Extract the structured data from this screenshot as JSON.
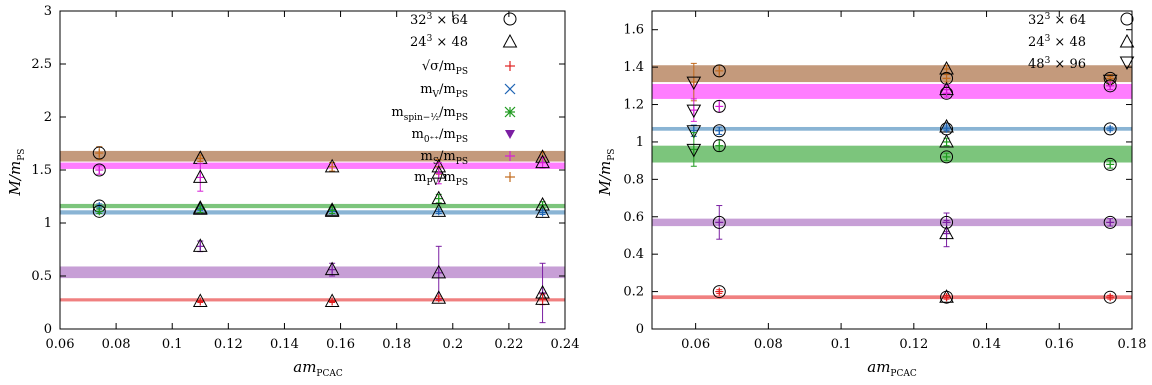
{
  "chart_data": [
    {
      "type": "scatter",
      "xlabel": "am_PCAC",
      "ylabel": "M/m_PS",
      "xlim": [
        0.06,
        0.24
      ],
      "ylim": [
        0,
        3
      ],
      "xticks": [
        "0.06",
        "0.08",
        "0.1",
        "0.12",
        "0.14",
        "0.16",
        "0.18",
        "0.2",
        "0.22",
        "0.24"
      ],
      "yticks": [
        "0",
        "0.5",
        "1",
        "1.5",
        "2",
        "2.5",
        "3"
      ],
      "legend": [
        "32^3 × 64",
        "24^3 × 48",
        "√σ/m_PS",
        "m_V/m_PS",
        "m_spin-1/2/m_PS",
        "m_0++/m_PS",
        "m_S/m_PS",
        "m_PV/m_PS"
      ],
      "bands": [
        {
          "name": "m_PV/m_PS",
          "color": "#c49a7c",
          "ymin": 1.58,
          "ymax": 1.68
        },
        {
          "name": "m_S/m_PS",
          "color": "#ff7dff",
          "ymin": 1.51,
          "ymax": 1.57
        },
        {
          "name": "m_spin-1/2/m_PS",
          "color": "#7cc57c",
          "ymin": 1.14,
          "ymax": 1.18
        },
        {
          "name": "m_V/m_PS",
          "color": "#8ab4d4",
          "ymin": 1.08,
          "ymax": 1.12
        },
        {
          "name": "m_0++/m_PS",
          "color": "#c79fd6",
          "ymin": 0.48,
          "ymax": 0.59
        },
        {
          "name": "√σ/m_PS",
          "color": "#f08080",
          "ymin": 0.26,
          "ymax": 0.29
        }
      ],
      "points": [
        {
          "x": 0.074,
          "y": 1.66,
          "err": 0.06,
          "color": "#c26a1d",
          "marker": "circle"
        },
        {
          "x": 0.074,
          "y": 1.5,
          "err": 0.04,
          "color": "#d61ed6",
          "marker": "circle"
        },
        {
          "x": 0.074,
          "y": 1.16,
          "err": 0.02,
          "color": "#1e64b4",
          "marker": "circle"
        },
        {
          "x": 0.074,
          "y": 1.11,
          "err": 0.02,
          "color": "#1e9a1e",
          "marker": "circle"
        },
        {
          "x": 0.11,
          "y": 1.61,
          "err": 0.03,
          "color": "#c26a1d",
          "marker": "up"
        },
        {
          "x": 0.11,
          "y": 1.43,
          "err": 0.13,
          "color": "#d61ed6",
          "marker": "up"
        },
        {
          "x": 0.11,
          "y": 1.14,
          "err": 0.02,
          "color": "#1e64b4",
          "marker": "up"
        },
        {
          "x": 0.11,
          "y": 1.13,
          "err": 0.03,
          "color": "#1e9a1e",
          "marker": "up"
        },
        {
          "x": 0.11,
          "y": 0.78,
          "err": 0.05,
          "color": "#7b1fa2",
          "marker": "up"
        },
        {
          "x": 0.11,
          "y": 0.26,
          "err": 0.01,
          "color": "#e02020",
          "marker": "up"
        },
        {
          "x": 0.157,
          "y": 1.53,
          "err": 0.04,
          "color": "#c26a1d",
          "marker": "up"
        },
        {
          "x": 0.157,
          "y": 1.11,
          "err": 0.02,
          "color": "#1e64b4",
          "marker": "up"
        },
        {
          "x": 0.157,
          "y": 1.12,
          "err": 0.03,
          "color": "#1e9a1e",
          "marker": "up"
        },
        {
          "x": 0.157,
          "y": 0.56,
          "err": 0.06,
          "color": "#7b1fa2",
          "marker": "up"
        },
        {
          "x": 0.157,
          "y": 0.26,
          "err": 0.01,
          "color": "#e02020",
          "marker": "up"
        },
        {
          "x": 0.195,
          "y": 1.53,
          "err": 0.07,
          "color": "#c26a1d",
          "marker": "up"
        },
        {
          "x": 0.195,
          "y": 1.47,
          "err": 0.1,
          "color": "#d61ed6",
          "marker": "up"
        },
        {
          "x": 0.195,
          "y": 1.23,
          "err": 0.04,
          "color": "#1e9a1e",
          "marker": "up"
        },
        {
          "x": 0.195,
          "y": 1.11,
          "err": 0.02,
          "color": "#1e64b4",
          "marker": "up"
        },
        {
          "x": 0.195,
          "y": 0.53,
          "err": 0.25,
          "color": "#7b1fa2",
          "marker": "up"
        },
        {
          "x": 0.195,
          "y": 0.29,
          "err": 0.02,
          "color": "#e02020",
          "marker": "up"
        },
        {
          "x": 0.232,
          "y": 1.62,
          "err": 0.05,
          "color": "#c26a1d",
          "marker": "up"
        },
        {
          "x": 0.232,
          "y": 1.57,
          "err": 0.05,
          "color": "#d61ed6",
          "marker": "up"
        },
        {
          "x": 0.232,
          "y": 1.17,
          "err": 0.03,
          "color": "#1e9a1e",
          "marker": "up"
        },
        {
          "x": 0.232,
          "y": 1.1,
          "err": 0.02,
          "color": "#1e64b4",
          "marker": "up"
        },
        {
          "x": 0.232,
          "y": 0.34,
          "err": 0.28,
          "color": "#7b1fa2",
          "marker": "up"
        },
        {
          "x": 0.232,
          "y": 0.28,
          "err": 0.05,
          "color": "#e02020",
          "marker": "up"
        }
      ]
    },
    {
      "type": "scatter",
      "xlabel": "am_PCAC",
      "ylabel": "M/m_PS",
      "xlim": [
        0.048,
        0.18
      ],
      "ylim": [
        0,
        1.7
      ],
      "xticks": [
        "0.06",
        "0.08",
        "0.1",
        "0.12",
        "0.14",
        "0.16",
        "0.18"
      ],
      "yticks": [
        "0",
        "0.2",
        "0.4",
        "0.6",
        "0.8",
        "1",
        "1.2",
        "1.4",
        "1.6"
      ],
      "legend": [
        "32^3 × 64",
        "24^3 × 48",
        "48^3 × 96"
      ],
      "bands": [
        {
          "name": "m_PV/m_PS",
          "color": "#c49a7c",
          "ymin": 1.32,
          "ymax": 1.41
        },
        {
          "name": "m_S/m_PS",
          "color": "#ff7dff",
          "ymin": 1.23,
          "ymax": 1.31
        },
        {
          "name": "m_V/m_PS",
          "color": "#8ab4d4",
          "ymin": 1.06,
          "ymax": 1.08
        },
        {
          "name": "m_spin-1/2/m_PS",
          "color": "#7cc57c",
          "ymin": 0.89,
          "ymax": 0.98
        },
        {
          "name": "m_0++/m_PS",
          "color": "#c79fd6",
          "ymin": 0.55,
          "ymax": 0.59
        },
        {
          "name": "√σ/m_PS",
          "color": "#f08080",
          "ymin": 0.16,
          "ymax": 0.18
        }
      ],
      "points": [
        {
          "x": 0.0595,
          "y": 1.32,
          "err": 0.1,
          "color": "#c26a1d",
          "marker": "down"
        },
        {
          "x": 0.0595,
          "y": 1.17,
          "err": 0.06,
          "color": "#d61ed6",
          "marker": "down"
        },
        {
          "x": 0.0595,
          "y": 1.06,
          "err": 0.03,
          "color": "#1e64b4",
          "marker": "down"
        },
        {
          "x": 0.0595,
          "y": 0.96,
          "err": 0.09,
          "color": "#1e9a1e",
          "marker": "down"
        },
        {
          "x": 0.0665,
          "y": 1.38,
          "err": 0.03,
          "color": "#c26a1d",
          "marker": "circle"
        },
        {
          "x": 0.0665,
          "y": 1.19,
          "err": 0.03,
          "color": "#d61ed6",
          "marker": "circle"
        },
        {
          "x": 0.0665,
          "y": 1.06,
          "err": 0.02,
          "color": "#1e64b4",
          "marker": "circle"
        },
        {
          "x": 0.0665,
          "y": 0.98,
          "err": 0.03,
          "color": "#1e9a1e",
          "marker": "circle"
        },
        {
          "x": 0.0665,
          "y": 0.57,
          "err": 0.09,
          "color": "#7b1fa2",
          "marker": "circle"
        },
        {
          "x": 0.0665,
          "y": 0.2,
          "err": 0.01,
          "color": "#e02020",
          "marker": "circle"
        },
        {
          "x": 0.129,
          "y": 1.39,
          "err": 0.02,
          "color": "#c26a1d",
          "marker": "up"
        },
        {
          "x": 0.129,
          "y": 1.34,
          "err": 0.02,
          "color": "#c26a1d",
          "marker": "circle"
        },
        {
          "x": 0.129,
          "y": 1.28,
          "err": 0.02,
          "color": "#d61ed6",
          "marker": "up"
        },
        {
          "x": 0.129,
          "y": 1.26,
          "err": 0.02,
          "color": "#d61ed6",
          "marker": "circle"
        },
        {
          "x": 0.129,
          "y": 1.08,
          "err": 0.01,
          "color": "#1e64b4",
          "marker": "up"
        },
        {
          "x": 0.129,
          "y": 1.07,
          "err": 0.01,
          "color": "#1e64b4",
          "marker": "circle"
        },
        {
          "x": 0.129,
          "y": 1.0,
          "err": 0.02,
          "color": "#1e9a1e",
          "marker": "up"
        },
        {
          "x": 0.129,
          "y": 0.92,
          "err": 0.02,
          "color": "#1e9a1e",
          "marker": "circle"
        },
        {
          "x": 0.129,
          "y": 0.57,
          "err": 0.05,
          "color": "#7b1fa2",
          "marker": "circle"
        },
        {
          "x": 0.129,
          "y": 0.51,
          "err": 0.07,
          "color": "#7b1fa2",
          "marker": "up"
        },
        {
          "x": 0.129,
          "y": 0.17,
          "err": 0.01,
          "color": "#e02020",
          "marker": "up"
        },
        {
          "x": 0.129,
          "y": 0.17,
          "err": 0.01,
          "color": "#e02020",
          "marker": "circle"
        },
        {
          "x": 0.174,
          "y": 1.34,
          "err": 0.02,
          "color": "#c26a1d",
          "marker": "circle"
        },
        {
          "x": 0.174,
          "y": 1.33,
          "err": 0.02,
          "color": "#c26a1d",
          "marker": "down"
        },
        {
          "x": 0.174,
          "y": 1.3,
          "err": 0.02,
          "color": "#d61ed6",
          "marker": "circle"
        },
        {
          "x": 0.174,
          "y": 1.07,
          "err": 0.01,
          "color": "#1e64b4",
          "marker": "circle"
        },
        {
          "x": 0.174,
          "y": 0.88,
          "err": 0.02,
          "color": "#1e9a1e",
          "marker": "circle"
        },
        {
          "x": 0.174,
          "y": 0.57,
          "err": 0.02,
          "color": "#7b1fa2",
          "marker": "circle"
        },
        {
          "x": 0.174,
          "y": 0.17,
          "err": 0.01,
          "color": "#e02020",
          "marker": "circle"
        }
      ]
    }
  ],
  "legend_symbol_colors": {
    "sigma": "#e02020",
    "V": "#1e64b4",
    "spin": "#1e9a1e",
    "zero": "#7b1fa2",
    "S": "#d61ed6",
    "PV": "#c26a1d"
  }
}
